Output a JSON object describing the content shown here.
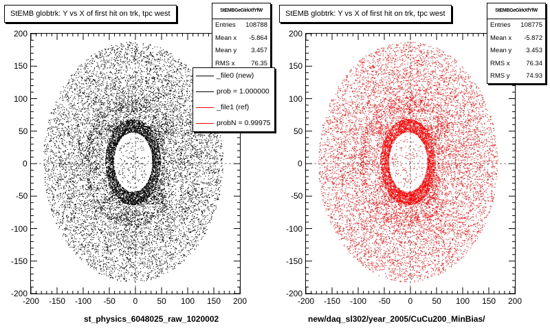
{
  "chart_data": [
    {
      "type": "scatter",
      "title": "StEMB globtrk: Y vs X of first hit on trk, tpc west",
      "xlabel": "st_physics_6048025_raw_1020002",
      "ylabel": "",
      "xlim": [
        -200,
        200
      ],
      "ylim": [
        -200,
        200
      ],
      "x_ticks": [
        -200,
        -150,
        -100,
        -50,
        0,
        50,
        100,
        150,
        200
      ],
      "y_ticks": [
        -200,
        -150,
        -100,
        -50,
        0,
        50,
        100,
        150,
        200
      ],
      "grid": true,
      "color": "#000000",
      "stats": {
        "name": "StEMBGeGlrkXfYfW",
        "rows": [
          {
            "label": "Entries",
            "value": "108788"
          },
          {
            "label": "Mean x",
            "value": "-5.864"
          },
          {
            "label": "Mean y",
            "value": "3.457"
          },
          {
            "label": "RMS x",
            "value": "76.35"
          }
        ]
      },
      "legend": {
        "placement": "right",
        "entries": [
          {
            "label": "_file0 (new)",
            "color": "#000000"
          },
          {
            "label": "prob = 1.000000",
            "color": "#000000"
          },
          {
            "label": "_file1 (ref)",
            "color": "#ff0000"
          },
          {
            "label": "probN = 0.99975",
            "color": "#ff0000"
          }
        ]
      }
    },
    {
      "type": "scatter",
      "title": "StEMB globtrk: Y vs X of first hit on trk, tpc west",
      "xlabel": "new/daq_sl302/year_2005/CuCu200_MinBias/",
      "ylabel": "",
      "xlim": [
        -200,
        200
      ],
      "ylim": [
        -200,
        200
      ],
      "x_ticks": [
        -200,
        -150,
        -100,
        -50,
        0,
        50,
        100,
        150,
        200
      ],
      "y_ticks": [
        -200,
        -150,
        -100,
        -50,
        0,
        50,
        100,
        150,
        200
      ],
      "grid": true,
      "color": "#ff0000",
      "stats": {
        "name": "StEMBGeGlrkXfYfW",
        "rows": [
          {
            "label": "Entries",
            "value": "108775"
          },
          {
            "label": "Mean x",
            "value": "-5.872"
          },
          {
            "label": "Mean y",
            "value": "3.453"
          },
          {
            "label": "RMS x",
            "value": "76.34"
          },
          {
            "label": "RMS y",
            "value": "74.93"
          }
        ]
      }
    }
  ]
}
